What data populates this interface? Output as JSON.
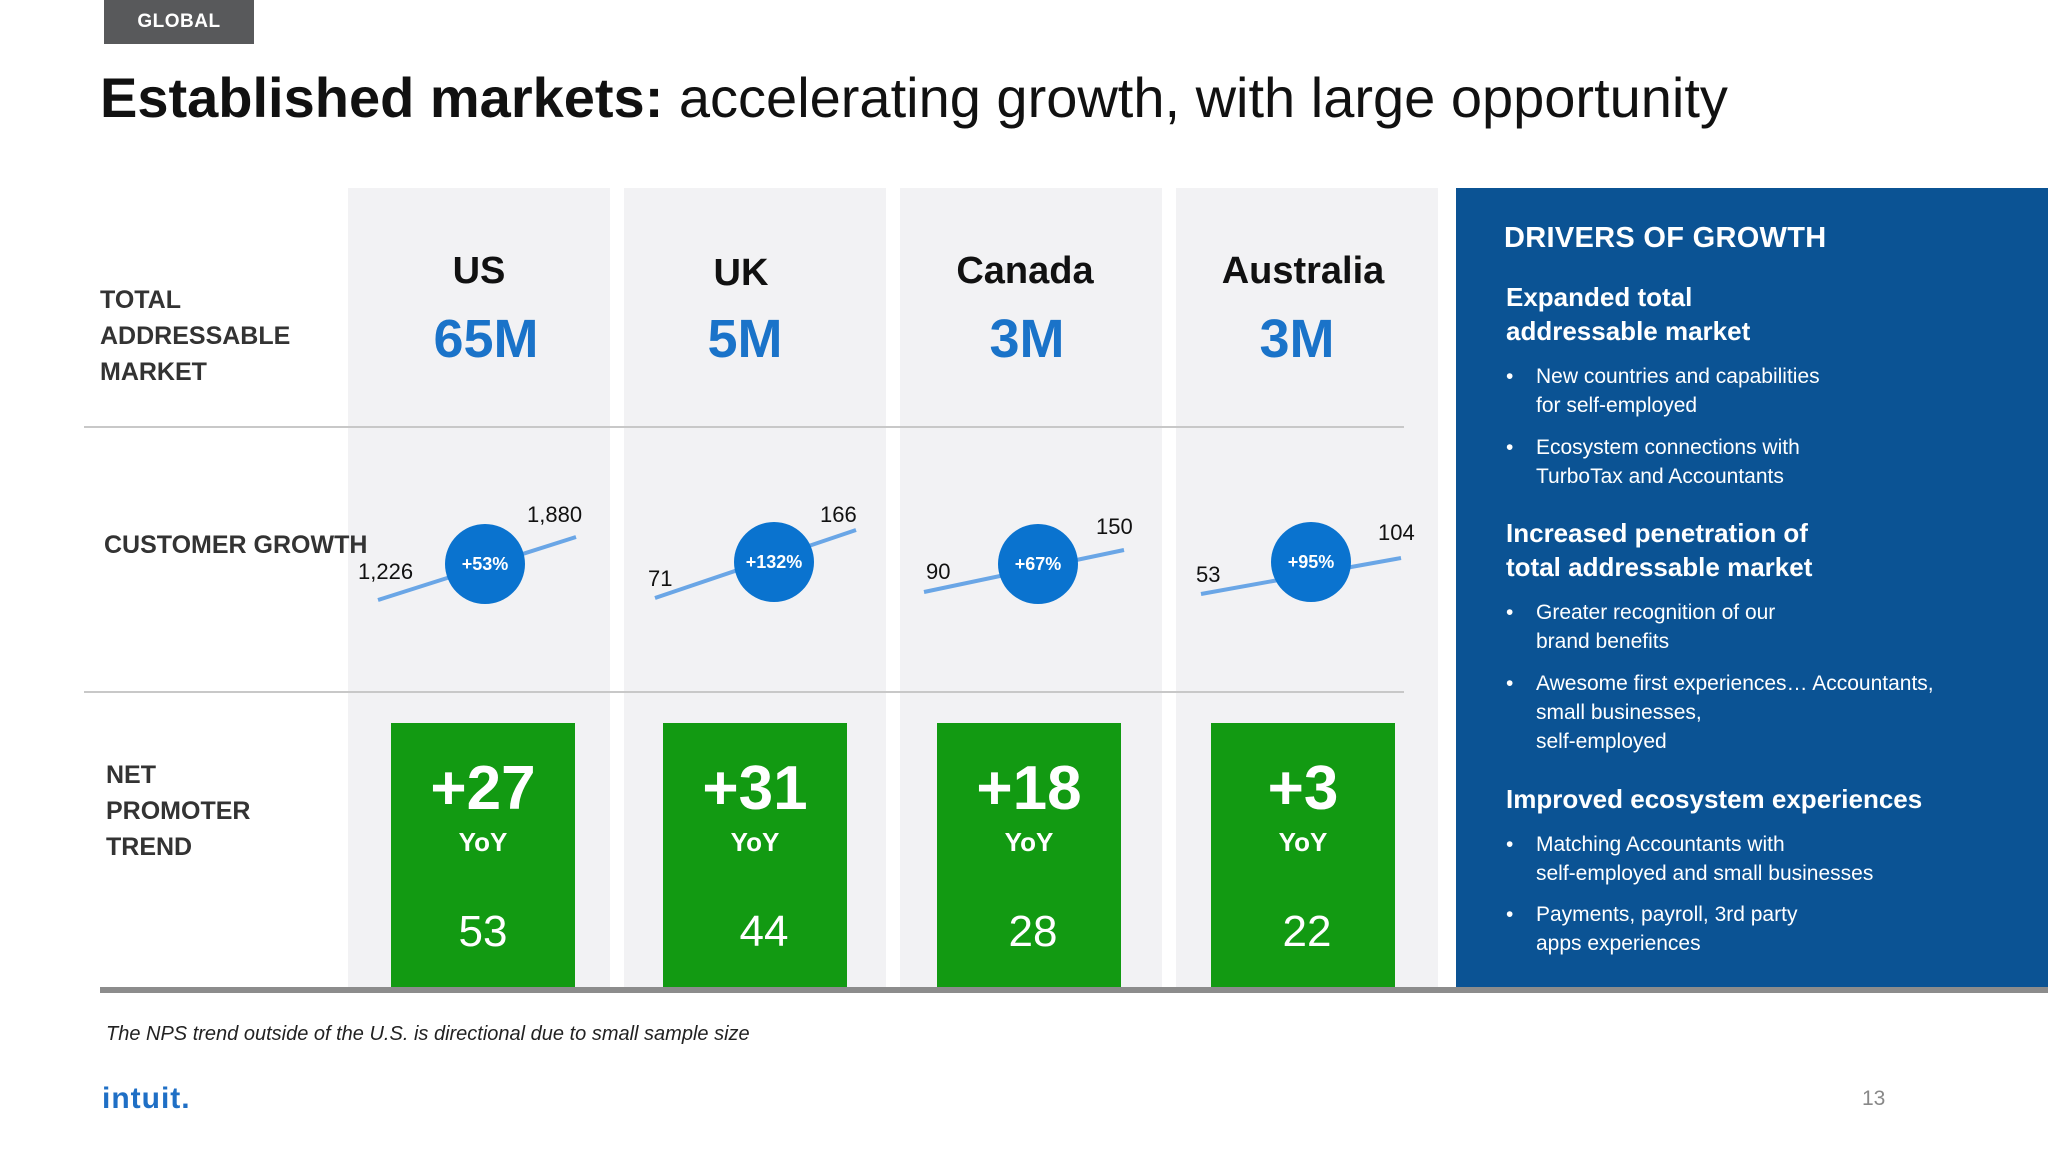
{
  "header": {
    "tag": "GLOBAL",
    "title_bold": "Established markets:",
    "title_rest": " accelerating growth, with large opportunity"
  },
  "row_labels": {
    "tam": [
      "TOTAL",
      "ADDRESSABLE",
      "MARKET"
    ],
    "customer_growth": "CUSTOMER GROWTH",
    "nps": [
      "NET",
      "PROMOTER",
      "TREND"
    ]
  },
  "countries": [
    {
      "name": "US",
      "tam": "65M",
      "growth_start": "1,226",
      "growth_end": "1,880",
      "growth_pct": "+53%",
      "nps_delta": "+27",
      "nps_yoy": "YoY",
      "nps_score": "53"
    },
    {
      "name": "UK",
      "tam": "5M",
      "growth_start": "71",
      "growth_end": "166",
      "growth_pct": "+132%",
      "nps_delta": "+31",
      "nps_yoy": "YoY",
      "nps_score": "44"
    },
    {
      "name": "Canada",
      "tam": "3M",
      "growth_start": "90",
      "growth_end": "150",
      "growth_pct": "+67%",
      "nps_delta": "+18",
      "nps_yoy": "YoY",
      "nps_score": "28"
    },
    {
      "name": "Australia",
      "tam": "3M",
      "growth_start": "53",
      "growth_end": "104",
      "growth_pct": "+95%",
      "nps_delta": "+3",
      "nps_yoy": "YoY",
      "nps_score": "22"
    }
  ],
  "drivers": {
    "title": "DRIVERS OF GROWTH",
    "sections": [
      {
        "heading": [
          "Expanded total",
          "addressable market"
        ],
        "bullets": [
          [
            "New countries and capabilities",
            "for self-employed"
          ],
          [
            "Ecosystem connections with",
            "TurboTax and Accountants"
          ]
        ]
      },
      {
        "heading": [
          "Increased penetration of",
          "total addressable market"
        ],
        "bullets": [
          [
            "Greater recognition of our",
            "brand benefits"
          ],
          [
            "Awesome first experiences… Accountants,",
            "small businesses,",
            "self-employed"
          ]
        ]
      },
      {
        "heading": [
          "Improved ecosystem experiences"
        ],
        "bullets": [
          [
            "Matching Accountants with",
            "self-employed and small businesses"
          ],
          [
            "Payments, payroll, 3rd party",
            "apps experiences"
          ]
        ]
      }
    ]
  },
  "bullet_glyph": "•",
  "footnote": "The NPS trend outside of the U.S. is directional due to small sample size",
  "logo": "intuit.",
  "page_number": "13",
  "colors": {
    "tam_blue": "#1a73c9",
    "nps_green": "#129a12",
    "panel_blue": "#0b5394",
    "bubble_blue": "#0a73cf"
  }
}
